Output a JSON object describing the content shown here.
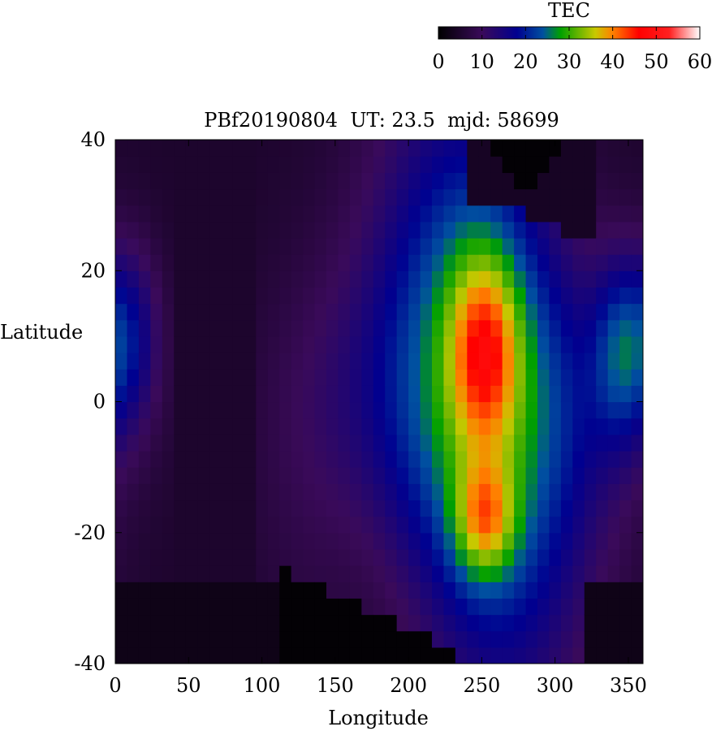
{
  "chart_data": {
    "type": "heatmap",
    "title": "PBf20190804  UT: 23.5  mjd: 58699",
    "xlabel": "Longitude",
    "ylabel": "Latitude",
    "xlim": [
      0,
      360
    ],
    "ylim": [
      -40,
      40
    ],
    "x_ticks": [
      "0",
      "50",
      "100",
      "150",
      "200",
      "250",
      "300",
      "350"
    ],
    "y_ticks": [
      "40",
      "20",
      "0",
      "-20",
      "-40"
    ],
    "grid": false,
    "colorbar": {
      "label": "TEC",
      "range": [
        0,
        60
      ],
      "ticks": [
        "0",
        "10",
        "20",
        "30",
        "40",
        "50",
        "60"
      ],
      "placement": "top-right",
      "stops": [
        {
          "value": 0,
          "color": "#000000"
        },
        {
          "value": 10,
          "color": "#3a0a5a"
        },
        {
          "value": 18,
          "color": "#000090"
        },
        {
          "value": 24,
          "color": "#0050a0"
        },
        {
          "value": 28,
          "color": "#00a000"
        },
        {
          "value": 36,
          "color": "#c8c800"
        },
        {
          "value": 40,
          "color": "#ff8000"
        },
        {
          "value": 46,
          "color": "#ff0000"
        },
        {
          "value": 53,
          "color": "#ff2020"
        },
        {
          "value": 60,
          "color": "#ffffff"
        }
      ]
    },
    "grid_resolution": {
      "lon_step": 8,
      "lat_step": 2.5
    },
    "features": {
      "peak_north": {
        "lon": 252,
        "lat": 8,
        "tec": 48
      },
      "peak_south": {
        "lon": 252,
        "lat": -18,
        "tec": 44
      },
      "background_tec": 5
    }
  }
}
